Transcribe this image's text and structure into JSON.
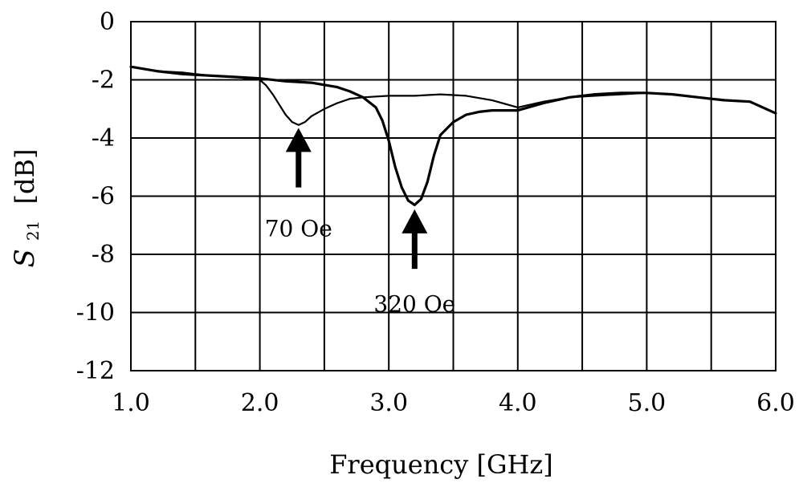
{
  "chart_data": {
    "type": "line",
    "xlabel": "Frequency [GHz]",
    "ylabel": {
      "symbol": "S",
      "subscript": "21",
      "unit": "[dB]"
    },
    "xlim": [
      1.0,
      6.0
    ],
    "ylim": [
      -12,
      0
    ],
    "x_ticks": [
      1.0,
      2.0,
      3.0,
      4.0,
      5.0,
      6.0
    ],
    "x_tick_labels": [
      "1.0",
      "2.0",
      "3.0",
      "4.0",
      "5.0",
      "6.0"
    ],
    "y_ticks": [
      0,
      -2,
      -4,
      -6,
      -8,
      -10,
      -12
    ],
    "y_tick_labels": [
      "0",
      "-2",
      "-4",
      "-6",
      "-8",
      "-10",
      "-12"
    ],
    "x_grid_step": 0.5,
    "grid": true,
    "series": [
      {
        "x": [
          1.0,
          1.2,
          1.4,
          1.6,
          1.8,
          2.0,
          2.05,
          2.1,
          2.15,
          2.2,
          2.25,
          2.3,
          2.35,
          2.4,
          2.5,
          2.6,
          2.7,
          2.8,
          3.0,
          3.2,
          3.4,
          3.6,
          3.8,
          4.0,
          4.2,
          4.4,
          4.6,
          4.8,
          5.0,
          5.2,
          5.4,
          5.6,
          5.8,
          6.0
        ],
        "y": [
          -1.55,
          -1.7,
          -1.75,
          -1.85,
          -1.9,
          -2.0,
          -2.2,
          -2.5,
          -2.85,
          -3.2,
          -3.45,
          -3.55,
          -3.45,
          -3.25,
          -3.0,
          -2.8,
          -2.65,
          -2.6,
          -2.55,
          -2.55,
          -2.5,
          -2.55,
          -2.7,
          -2.95,
          -2.75,
          -2.6,
          -2.55,
          -2.5,
          -2.45,
          -2.5,
          -2.6,
          -2.7,
          -2.75,
          -3.15
        ],
        "stroke": "#000000",
        "width": 2.2
      },
      {
        "x": [
          1.0,
          1.2,
          1.4,
          1.6,
          1.8,
          2.0,
          2.2,
          2.4,
          2.6,
          2.7,
          2.8,
          2.9,
          2.95,
          3.0,
          3.05,
          3.1,
          3.15,
          3.2,
          3.25,
          3.3,
          3.35,
          3.4,
          3.5,
          3.6,
          3.7,
          3.8,
          4.0,
          4.2,
          4.4,
          4.6,
          4.8,
          5.0,
          5.2,
          5.4,
          5.6,
          5.8,
          6.0
        ],
        "y": [
          -1.55,
          -1.7,
          -1.8,
          -1.85,
          -1.9,
          -1.95,
          -2.05,
          -2.1,
          -2.25,
          -2.4,
          -2.6,
          -2.95,
          -3.4,
          -4.1,
          -5.0,
          -5.7,
          -6.15,
          -6.3,
          -6.1,
          -5.5,
          -4.6,
          -3.9,
          -3.45,
          -3.2,
          -3.1,
          -3.05,
          -3.05,
          -2.8,
          -2.6,
          -2.5,
          -2.45,
          -2.45,
          -2.5,
          -2.6,
          -2.7,
          -2.75,
          -3.15
        ],
        "stroke": "#000000",
        "width": 3.2
      }
    ],
    "annotations": [
      {
        "text": "70 Oe",
        "arrow_tip_x": 2.3,
        "arrow_tip_y": -3.65,
        "arrow_tail_y": -5.7,
        "label_y": -7.1
      },
      {
        "text": "320 Oe",
        "arrow_tip_x": 3.2,
        "arrow_tip_y": -6.45,
        "arrow_tail_y": -8.5,
        "label_y": -9.7
      }
    ]
  }
}
